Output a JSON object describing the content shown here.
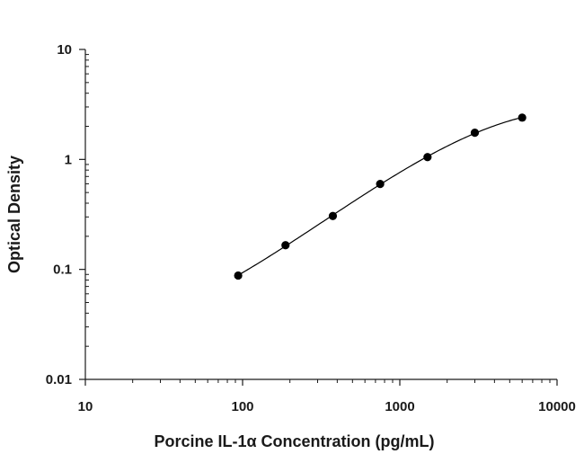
{
  "chart_data": {
    "type": "scatter",
    "title": "",
    "xlabel": "Porcine IL-1α Concentration (pg/mL)",
    "ylabel": "Optical Density",
    "xscale": "log",
    "yscale": "log",
    "xlim": [
      10,
      10000
    ],
    "ylim": [
      0.01,
      10
    ],
    "xticks": [
      10,
      100,
      1000,
      10000
    ],
    "xtick_labels": [
      "10",
      "100",
      "1000",
      "10000"
    ],
    "yticks": [
      0.01,
      0.1,
      1,
      10
    ],
    "ytick_labels": [
      "0.01",
      "0.1",
      "1",
      "10"
    ],
    "grid": false,
    "legend": "none",
    "fit_curve": true,
    "series": [
      {
        "x": [
          93.75,
          187.5,
          375,
          750,
          1500,
          3000,
          6000
        ],
        "y": [
          0.088,
          0.166,
          0.306,
          0.598,
          1.05,
          1.75,
          2.4
        ]
      }
    ],
    "colors": {
      "marker": "#000000",
      "axis": "#1a1a1a",
      "curve": "#000000"
    }
  }
}
